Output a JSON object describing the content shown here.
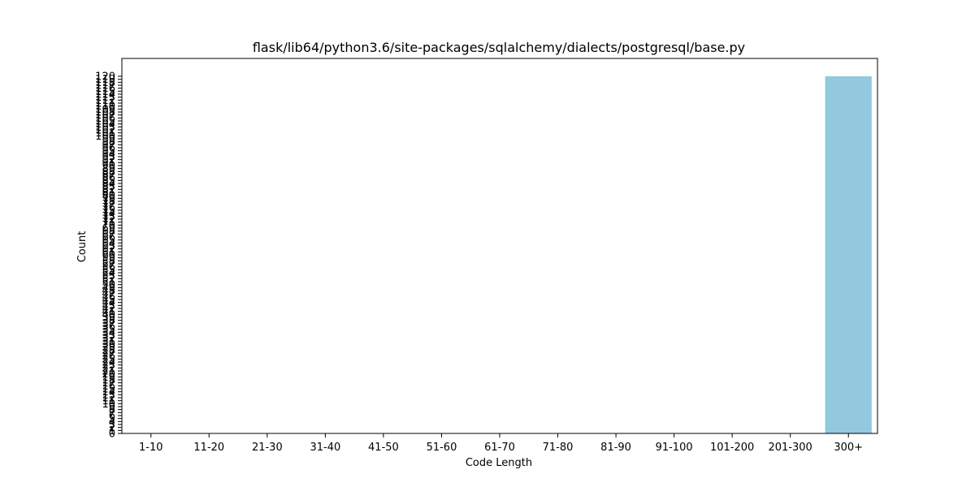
{
  "chart_data": {
    "type": "bar",
    "title": "flask/lib64/python3.6/site-packages/sqlalchemy/dialects/postgresql/base.py",
    "xlabel": "Code Length",
    "ylabel": "Count",
    "categories": [
      "1-10",
      "11-20",
      "21-30",
      "31-40",
      "41-50",
      "51-60",
      "61-70",
      "71-80",
      "81-90",
      "91-100",
      "101-200",
      "201-300",
      "300+"
    ],
    "values": [
      0,
      0,
      0,
      0,
      0,
      0,
      0,
      0,
      0,
      0,
      0,
      0,
      120
    ],
    "ylim": [
      0,
      120
    ],
    "ytick_step": 1,
    "bar_color": "#92c9de",
    "grid": false,
    "legend": "none"
  }
}
